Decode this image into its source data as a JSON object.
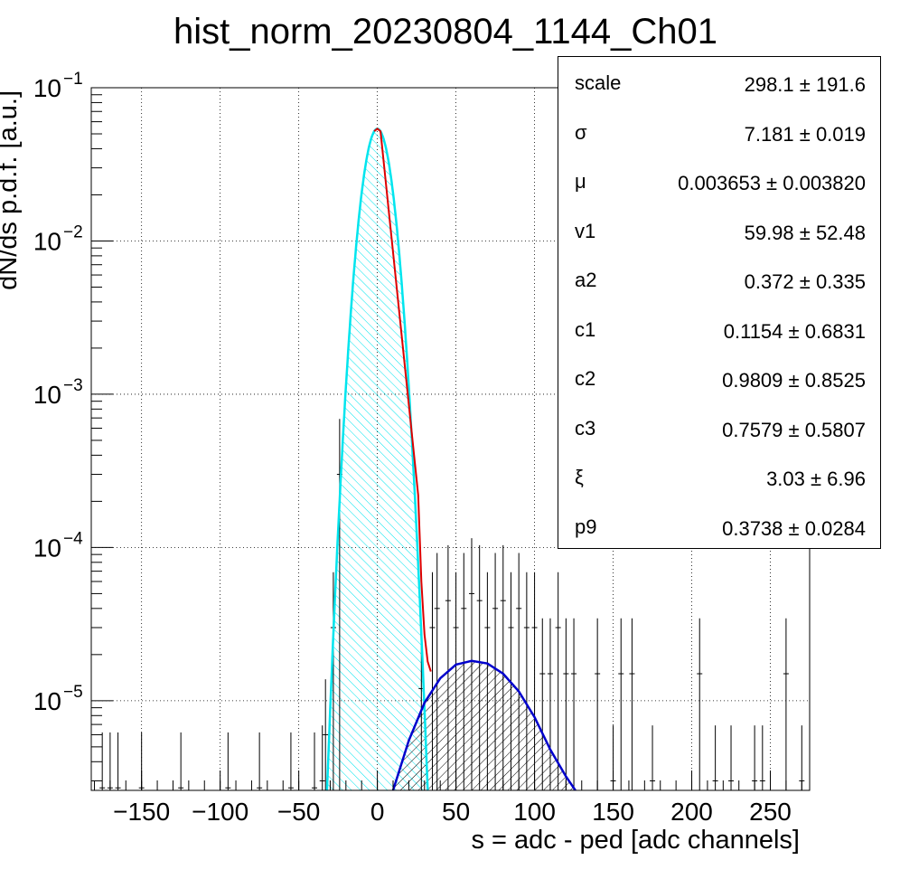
{
  "title": "hist_norm_20230804_1144_Ch01",
  "xlabel": "s = adc - ped [adc channels]",
  "ylabel": "dN/ds p.d.f. [a.u.]",
  "stats": [
    {
      "name": "scale",
      "value": "298.1 ± 191.6"
    },
    {
      "name": "σ",
      "value": "7.181 ± 0.019"
    },
    {
      "name": "μ",
      "value": "0.003653 ± 0.003820"
    },
    {
      "name": "v1",
      "value": "59.98 ± 52.48"
    },
    {
      "name": "a2",
      "value": "0.372 ± 0.335"
    },
    {
      "name": "c1",
      "value": "0.1154 ± 0.6831"
    },
    {
      "name": "c2",
      "value": "0.9809 ± 0.8525"
    },
    {
      "name": "c3",
      "value": "0.7579 ± 0.5807"
    },
    {
      "name": "ξ",
      "value": "3.03 ± 6.96"
    },
    {
      "name": "p9",
      "value": "0.3738 ± 0.0284"
    }
  ],
  "chart_data": {
    "type": "line",
    "title": "hist_norm_20230804_1144_Ch01",
    "xlabel": "s = adc - ped [adc channels]",
    "ylabel": "dN/ds p.d.f. [a.u.]",
    "xlim": [
      -182,
      275
    ],
    "ylim": [
      2.6e-06,
      0.1
    ],
    "yscale": "log",
    "grid": true,
    "xticks": [
      -150,
      -100,
      -50,
      0,
      50,
      100,
      150,
      200,
      250
    ],
    "xtick_labels": [
      "−150",
      "−100",
      "−50",
      "0",
      "50",
      "100",
      "150",
      "200",
      "250"
    ],
    "yticks": [
      1e-05,
      0.0001,
      0.001,
      0.01,
      0.1
    ],
    "ytick_labels": [
      {
        "base": "10",
        "exp": "−5"
      },
      {
        "base": "10",
        "exp": "−4"
      },
      {
        "base": "10",
        "exp": "−3"
      },
      {
        "base": "10",
        "exp": "−2"
      },
      {
        "base": "10",
        "exp": "−1"
      }
    ],
    "colors": {
      "pedestal": "#00e5ee",
      "signal": "#0000cc",
      "total": "#dd0000",
      "data": "#000000"
    },
    "series": [
      {
        "role": "pedestal-component",
        "style": "cyan curve, hatched fill",
        "peak_x": 0.0,
        "peak_y": 0.054,
        "sigma": 7.181
      },
      {
        "role": "signal-component",
        "style": "blue curve, black hatched fill",
        "x": [
          10,
          20,
          30,
          40,
          50,
          60,
          70,
          80,
          90,
          100,
          110,
          120,
          126
        ],
        "y": [
          2.6e-06,
          5.5e-06,
          9.7e-06,
          1.4e-05,
          1.72e-05,
          1.82e-05,
          1.75e-05,
          1.5e-05,
          1.15e-05,
          7.8e-06,
          4.8e-06,
          3.2e-06,
          2.6e-06
        ]
      },
      {
        "role": "total-fit",
        "style": "red curve",
        "x": [
          -2,
          0,
          2,
          26,
          28,
          30,
          32,
          34
        ],
        "y": [
          0.052,
          0.054,
          0.052,
          0.00022,
          6e-05,
          2.7e-05,
          1.8e-05,
          1.55e-05
        ]
      },
      {
        "role": "data-points",
        "style": "black error bars",
        "x": [
          -175,
          -170,
          -165,
          -150,
          -125,
          -95,
          -75,
          -55,
          -40,
          -35,
          -33,
          -28,
          -24,
          28,
          35,
          38,
          45,
          50,
          55,
          60,
          65,
          70,
          75,
          80,
          85,
          90,
          95,
          100,
          105,
          110,
          115,
          120,
          125,
          140,
          150,
          155,
          162,
          175,
          205,
          215,
          225,
          240,
          245,
          260,
          270
        ],
        "y": [
          2.7e-06,
          2.7e-06,
          2.7e-06,
          2.7e-06,
          2.7e-06,
          2.7e-06,
          2.7e-06,
          2.7e-06,
          2.7e-06,
          3e-06,
          6e-06,
          3e-05,
          0.0003,
          1.2e-05,
          3e-05,
          4e-05,
          4.5e-05,
          3e-05,
          4e-05,
          5e-05,
          4.5e-05,
          3e-05,
          4e-05,
          4.5e-05,
          3e-05,
          4e-05,
          3e-05,
          3e-05,
          1.5e-05,
          1.5e-05,
          3e-05,
          1.5e-05,
          1.5e-05,
          1.5e-05,
          3e-06,
          1.5e-05,
          1.5e-05,
          3e-06,
          1.5e-05,
          3e-06,
          3e-06,
          3e-06,
          3e-06,
          1.5e-05,
          3e-06
        ]
      }
    ]
  }
}
